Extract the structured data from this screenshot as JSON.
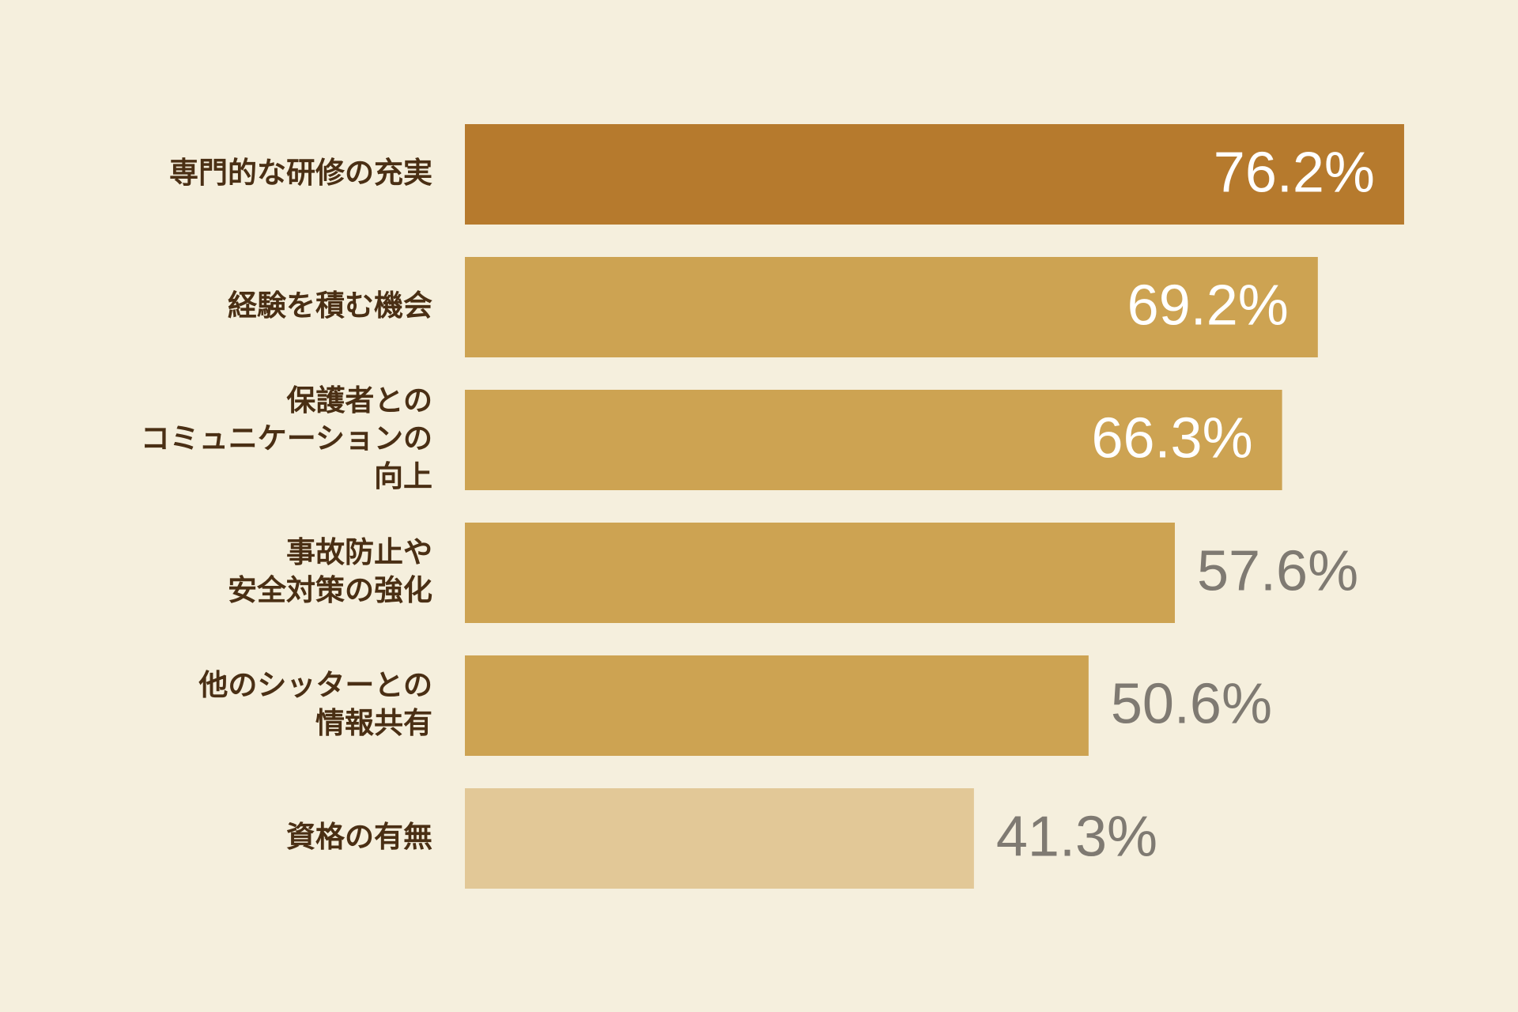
{
  "chart_data": {
    "type": "bar",
    "orientation": "horizontal",
    "categories": [
      [
        "専門的な研修の充実"
      ],
      [
        "経験を積む機会"
      ],
      [
        "保護者との",
        "コミュニケーションの",
        "向上"
      ],
      [
        "事故防止や",
        "安全対策の強化"
      ],
      [
        "他のシッターとの",
        "情報共有"
      ],
      [
        "資格の有無"
      ]
    ],
    "values": [
      76.2,
      69.2,
      66.3,
      57.6,
      50.6,
      41.3
    ],
    "value_labels": [
      "76.2%",
      "69.2%",
      "66.3%",
      "57.6%",
      "50.6%",
      "41.3%"
    ],
    "colors": [
      "#b67a2d",
      "#cda352",
      "#cda352",
      "#cda352",
      "#cda352",
      "#e2c897"
    ]
  }
}
